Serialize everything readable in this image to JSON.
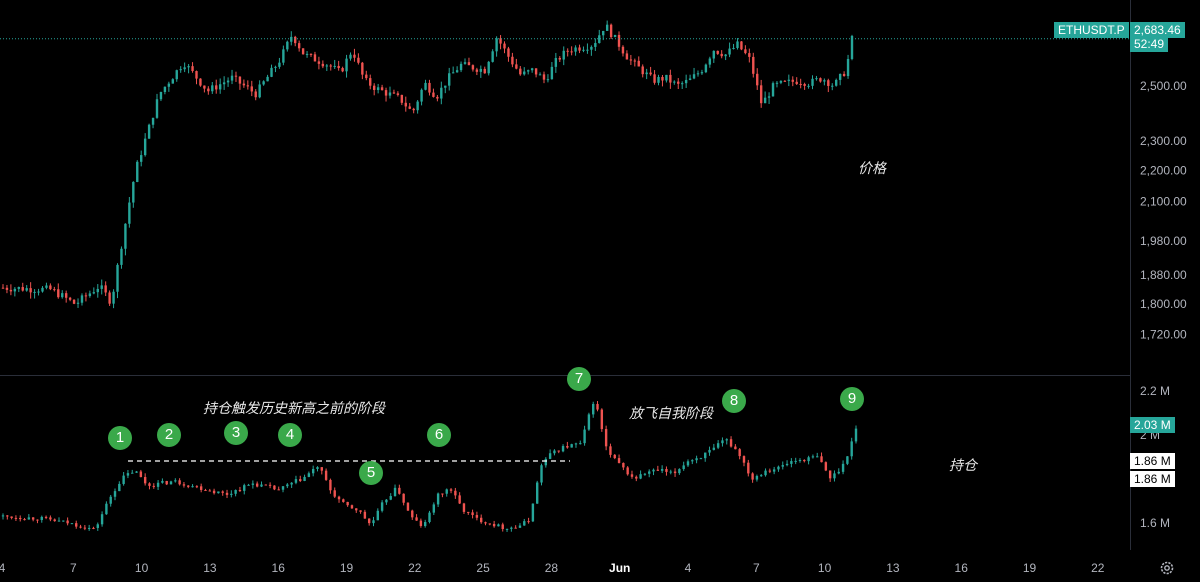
{
  "chart_data": {
    "type": "candlestick",
    "title": "",
    "symbol_tag": "ETHUSDT.P",
    "price_panel": {
      "label": "价格",
      "y_scale": "log",
      "y_ticks": [
        "2,500.00",
        "2,300.00",
        "2,200.00",
        "2,100.00",
        "1,980.00",
        "1,880.00",
        "1,800.00",
        "1,720.00"
      ],
      "last_price": "2,683.46",
      "countdown": "52:49",
      "ylim": [
        1680,
        2760
      ],
      "series_path": [
        [
          0,
          1845
        ],
        [
          4,
          1840
        ],
        [
          6,
          1800
        ],
        [
          8,
          1850
        ],
        [
          9,
          1805
        ],
        [
          10,
          2000
        ],
        [
          11,
          2200
        ],
        [
          12,
          2330
        ],
        [
          13,
          2470
        ],
        [
          15,
          2590
        ],
        [
          17,
          2480
        ],
        [
          19,
          2530
        ],
        [
          21,
          2470
        ],
        [
          23,
          2600
        ],
        [
          24,
          2700
        ],
        [
          25,
          2620
        ],
        [
          27,
          2580
        ],
        [
          28,
          2550
        ],
        [
          29,
          2640
        ],
        [
          30,
          2520
        ],
        [
          31,
          2490
        ],
        [
          32,
          2470
        ],
        [
          33,
          2450
        ],
        [
          34,
          2400
        ],
        [
          35,
          2510
        ],
        [
          36,
          2460
        ],
        [
          37,
          2530
        ],
        [
          38,
          2580
        ],
        [
          40,
          2560
        ],
        [
          41,
          2690
        ],
        [
          42,
          2610
        ],
        [
          43,
          2540
        ],
        [
          44,
          2560
        ],
        [
          45,
          2520
        ],
        [
          46,
          2600
        ],
        [
          47,
          2640
        ],
        [
          49,
          2660
        ],
        [
          50,
          2740
        ],
        [
          51,
          2670
        ],
        [
          52,
          2600
        ],
        [
          53,
          2560
        ],
        [
          54,
          2520
        ],
        [
          55,
          2530
        ],
        [
          56,
          2500
        ],
        [
          57,
          2520
        ],
        [
          58,
          2560
        ],
        [
          59,
          2640
        ],
        [
          60,
          2620
        ],
        [
          61,
          2660
        ],
        [
          62,
          2600
        ],
        [
          63,
          2430
        ],
        [
          64,
          2500
        ],
        [
          65,
          2510
        ],
        [
          66,
          2520
        ],
        [
          67,
          2510
        ],
        [
          68,
          2530
        ],
        [
          69,
          2500
        ],
        [
          70,
          2560
        ],
        [
          70.5,
          2683
        ]
      ]
    },
    "oi_panel": {
      "label": "持仓",
      "y_ticks": [
        "2.2 M",
        "2 M",
        "1.6 M"
      ],
      "current_value": "2.03 M",
      "marker_values": [
        "1.86 M",
        "1.86 M"
      ],
      "ylim": [
        1.5,
        2.25
      ],
      "series_path": [
        [
          0,
          1.63
        ],
        [
          3,
          1.62
        ],
        [
          5,
          1.6
        ],
        [
          7,
          1.57
        ],
        [
          8,
          1.7
        ],
        [
          9,
          1.8
        ],
        [
          10,
          1.84
        ],
        [
          11,
          1.77
        ],
        [
          13,
          1.79
        ],
        [
          15,
          1.76
        ],
        [
          17,
          1.73
        ],
        [
          19,
          1.78
        ],
        [
          21,
          1.75
        ],
        [
          23,
          1.81
        ],
        [
          24,
          1.86
        ],
        [
          25,
          1.74
        ],
        [
          26,
          1.68
        ],
        [
          27,
          1.66
        ],
        [
          28,
          1.59
        ],
        [
          29,
          1.7
        ],
        [
          30,
          1.76
        ],
        [
          31,
          1.63
        ],
        [
          32,
          1.58
        ],
        [
          33,
          1.72
        ],
        [
          34,
          1.76
        ],
        [
          35,
          1.66
        ],
        [
          36,
          1.62
        ],
        [
          37,
          1.6
        ],
        [
          38,
          1.58
        ],
        [
          39,
          1.58
        ],
        [
          40,
          1.61
        ],
        [
          41,
          1.87
        ],
        [
          42,
          1.93
        ],
        [
          43,
          1.95
        ],
        [
          44,
          1.96
        ],
        [
          45,
          2.17
        ],
        [
          46,
          1.92
        ],
        [
          47,
          1.86
        ],
        [
          48,
          1.8
        ],
        [
          49,
          1.83
        ],
        [
          50,
          1.84
        ],
        [
          51,
          1.82
        ],
        [
          52,
          1.88
        ],
        [
          53,
          1.9
        ],
        [
          54,
          1.93
        ],
        [
          55,
          1.98
        ],
        [
          56,
          1.92
        ],
        [
          57,
          1.8
        ],
        [
          58,
          1.84
        ],
        [
          59,
          1.85
        ],
        [
          60,
          1.88
        ],
        [
          61,
          1.89
        ],
        [
          62,
          1.9
        ],
        [
          63,
          1.8
        ],
        [
          64,
          1.87
        ],
        [
          65,
          2.04
        ]
      ]
    },
    "x_ticks": [
      "4",
      "7",
      "10",
      "13",
      "16",
      "19",
      "22",
      "25",
      "28",
      "Jun",
      "4",
      "7",
      "10",
      "13",
      "16",
      "19",
      "22"
    ],
    "annotations": [
      {
        "id": "ann-pre-ath",
        "text": "持仓触发历史新高之前的阶段"
      },
      {
        "id": "ann-takeoff",
        "text": "放飞自我阶段"
      }
    ],
    "markers": [
      "1",
      "2",
      "3",
      "4",
      "5",
      "6",
      "7",
      "8",
      "9"
    ],
    "colors": {
      "up": "#26a69a",
      "down": "#ef5350",
      "badge": "#3aa94a",
      "background": "#000000"
    }
  }
}
